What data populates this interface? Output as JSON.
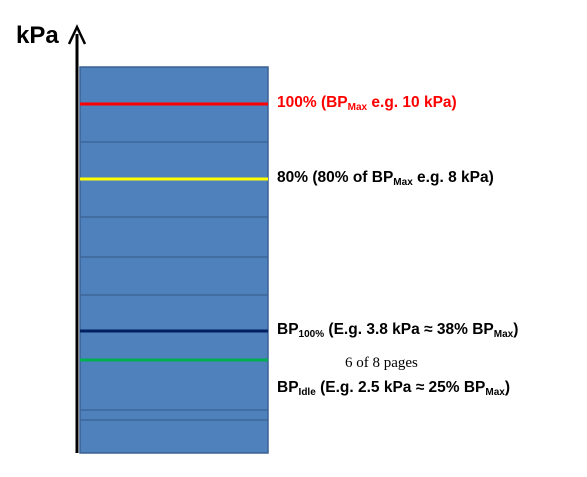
{
  "axis": {
    "unit": "kPa"
  },
  "colors": {
    "bar": "#4f81bd",
    "bar_border": "#3a6293",
    "axis": "#000000",
    "max_line": "#ff0000",
    "eighty_line": "#ffff00",
    "bp100_line": "#002060",
    "idle_line": "#00b050",
    "max_text": "#ff0000",
    "text": "#000000"
  },
  "levels": {
    "max": {
      "pre": "100% (BP",
      "sub": "Max",
      "post": " e.g. 10 kPa)",
      "fraction_of_max": 1.0
    },
    "eighty": {
      "pre": "80% (80% of BP",
      "sub": "Max",
      "post": " e.g. 8 kPa)",
      "fraction_of_max": 0.8
    },
    "bp100": {
      "pre": "BP",
      "sub": "100%",
      "mid": " (E.g. 3.8 kPa ≈ 38% BP",
      "sub2": "Max",
      "post": ")",
      "fraction_of_max": 0.38
    },
    "idle": {
      "pre": "BP",
      "sub": "Idle",
      "mid": " (E.g. 2.5 kPa ≈ 25% BP",
      "sub2": "Max",
      "post": ")",
      "fraction_of_max": 0.25
    }
  },
  "footer": {
    "pages": "6 of 8 pages"
  }
}
